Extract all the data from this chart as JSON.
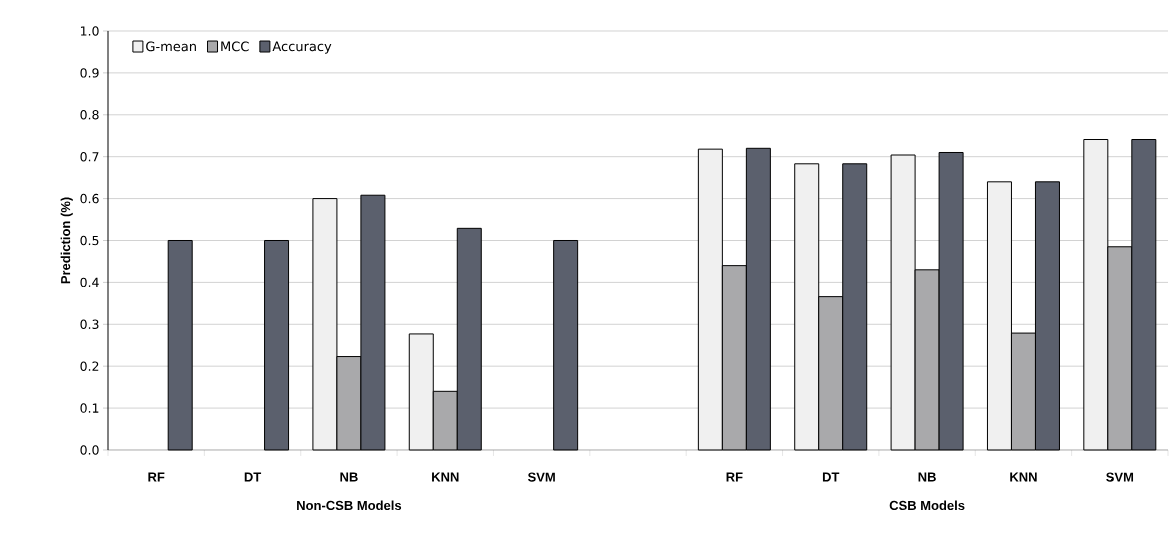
{
  "chart_data": {
    "type": "bar",
    "ylabel": "Prediction (%)",
    "categories": [
      "RF",
      "DT",
      "NB",
      "KNN",
      "SVM",
      null,
      "RF",
      "DT",
      "NB",
      "KNN",
      "SVM"
    ],
    "series": [
      {
        "name": "G-mean",
        "color": "#f0f0f0",
        "values": [
          null,
          null,
          0.6,
          0.277,
          null,
          null,
          0.718,
          0.683,
          0.704,
          0.64,
          0.741
        ]
      },
      {
        "name": "MCC",
        "color": "#a9a9ab",
        "values": [
          null,
          null,
          0.223,
          0.14,
          null,
          null,
          0.44,
          0.366,
          0.43,
          0.279,
          0.485
        ]
      },
      {
        "name": "Accuracy",
        "color": "#5b606d",
        "values": [
          0.5,
          0.5,
          0.608,
          0.529,
          0.5,
          null,
          0.72,
          0.683,
          0.71,
          0.64,
          0.741
        ]
      }
    ],
    "ylim": [
      0,
      1
    ],
    "yticks": [
      {
        "value": 0,
        "label": "0.0"
      },
      0.1,
      0.2,
      0.3,
      0.4,
      0.5,
      0.6,
      0.7,
      0.8,
      0.9,
      {
        "value": 1,
        "label": "1.0"
      }
    ],
    "grid": "y",
    "legend": "top left",
    "annotations": [
      "Non-CSB Models",
      "CSB Models"
    ]
  }
}
